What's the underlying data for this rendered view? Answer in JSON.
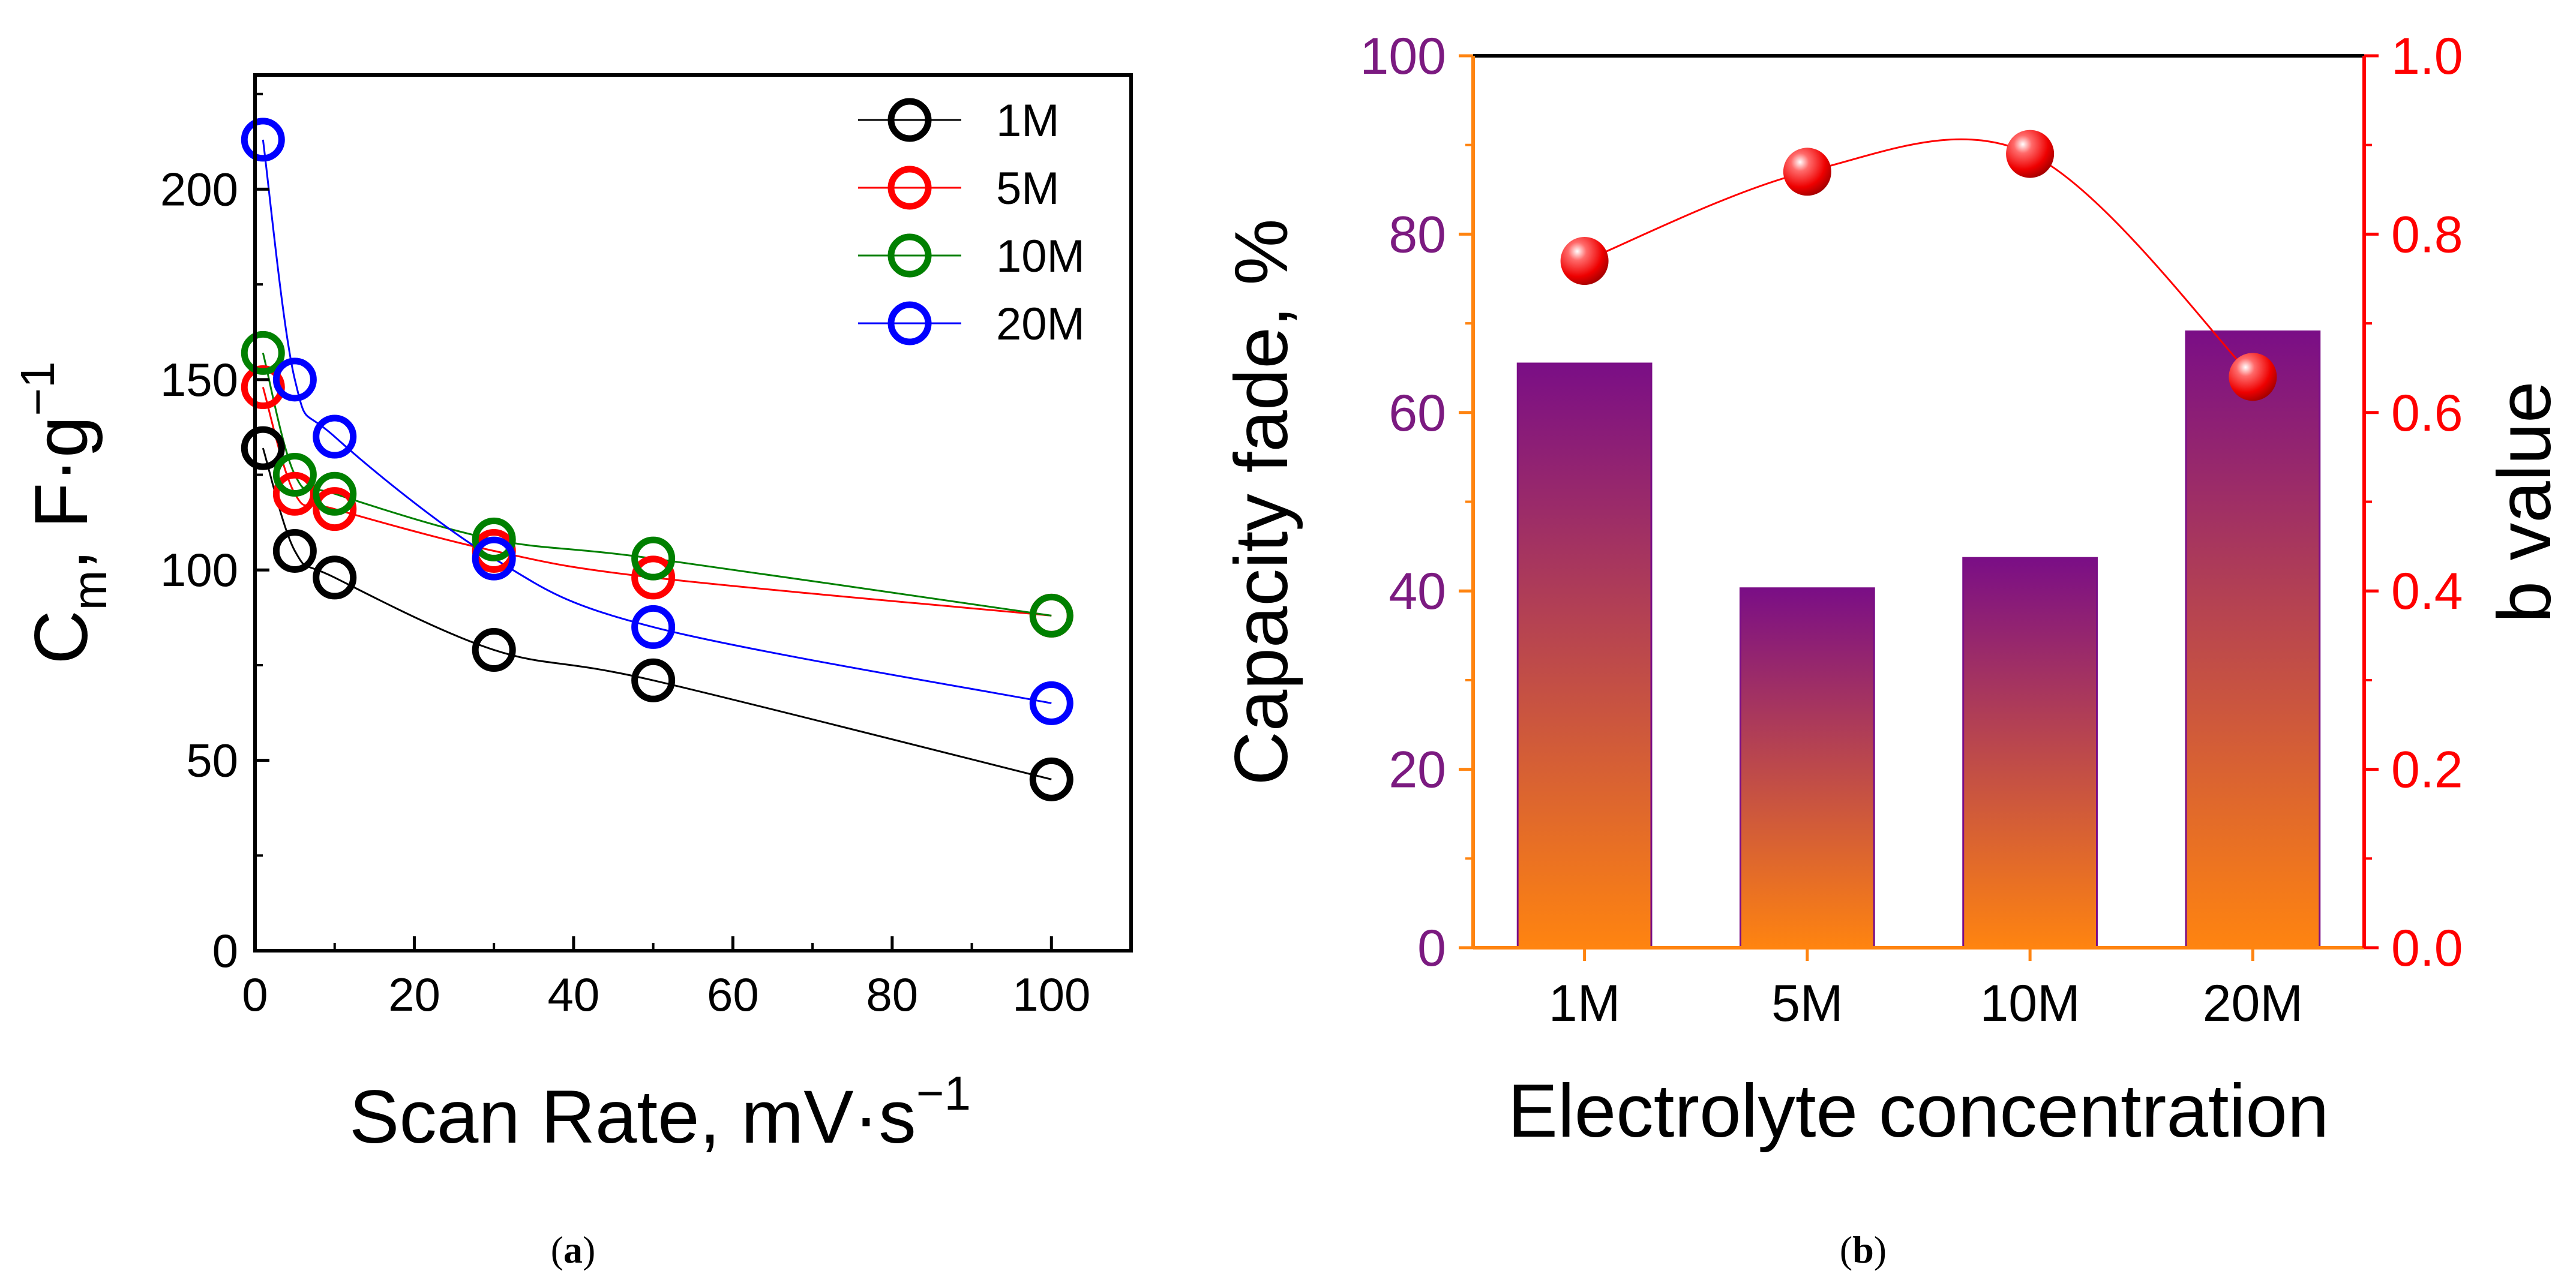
{
  "chart_data": [
    {
      "type": "line",
      "panel_label": "(a)",
      "label_open": "(",
      "label_letter": "a",
      "label_close": ")",
      "xlabel": "Scan Rate, mV·s",
      "xlabel_sup": "−1",
      "ylabel": "C",
      "ylabel_sub": "m",
      "ylabel_rest": ", F·g",
      "ylabel_sup": "−1",
      "xlim": [
        0,
        110
      ],
      "ylim": [
        0,
        230
      ],
      "xticks": [
        0,
        20,
        40,
        60,
        80,
        100
      ],
      "yticks": [
        0,
        50,
        100,
        150,
        200
      ],
      "legend_position": "top-right",
      "series": [
        {
          "name": "1M",
          "color": "#000000",
          "x": [
            1,
            5,
            10,
            30,
            50,
            100
          ],
          "y": [
            132,
            105,
            98,
            79,
            71,
            45
          ]
        },
        {
          "name": "5M",
          "color": "#ff0000",
          "x": [
            1,
            5,
            10,
            30,
            50,
            100
          ],
          "y": [
            148,
            120,
            116,
            105,
            98,
            88
          ]
        },
        {
          "name": "10M",
          "color": "#008000",
          "x": [
            1,
            5,
            10,
            30,
            50,
            100
          ],
          "y": [
            157,
            125,
            120,
            108,
            103,
            88
          ]
        },
        {
          "name": "20M",
          "color": "#0000ff",
          "x": [
            1,
            5,
            10,
            30,
            50,
            100
          ],
          "y": [
            213,
            150,
            135,
            103,
            85,
            65
          ]
        }
      ]
    },
    {
      "type": "bar",
      "panel_label": "(b)",
      "label_open": "(",
      "label_letter": "b",
      "label_close": ")",
      "categories": [
        "1M",
        "5M",
        "10M",
        "20M"
      ],
      "xlabel": "Electrolyte concentration",
      "ylabel": "Capacity fade, %",
      "ylabel_right": "b value",
      "ylim": [
        0,
        100
      ],
      "ylim_right": [
        0.0,
        1.0
      ],
      "yticks": [
        0,
        20,
        40,
        60,
        80,
        100
      ],
      "yticks_right": [
        "0.0",
        "0.2",
        "0.4",
        "0.6",
        "0.8",
        "1.0"
      ],
      "left_axis_color": "#7b1a80",
      "right_axis_color": "#ff0000",
      "bar_color_top": "#7a0e86",
      "bar_color_bottom": "#ff8410",
      "series": [
        {
          "name": "Capacity fade",
          "axis": "left",
          "values": [
            65.5,
            40.3,
            43.7,
            69.1
          ]
        },
        {
          "name": "b value",
          "axis": "right",
          "values": [
            0.77,
            0.87,
            0.89,
            0.64
          ]
        }
      ]
    }
  ]
}
